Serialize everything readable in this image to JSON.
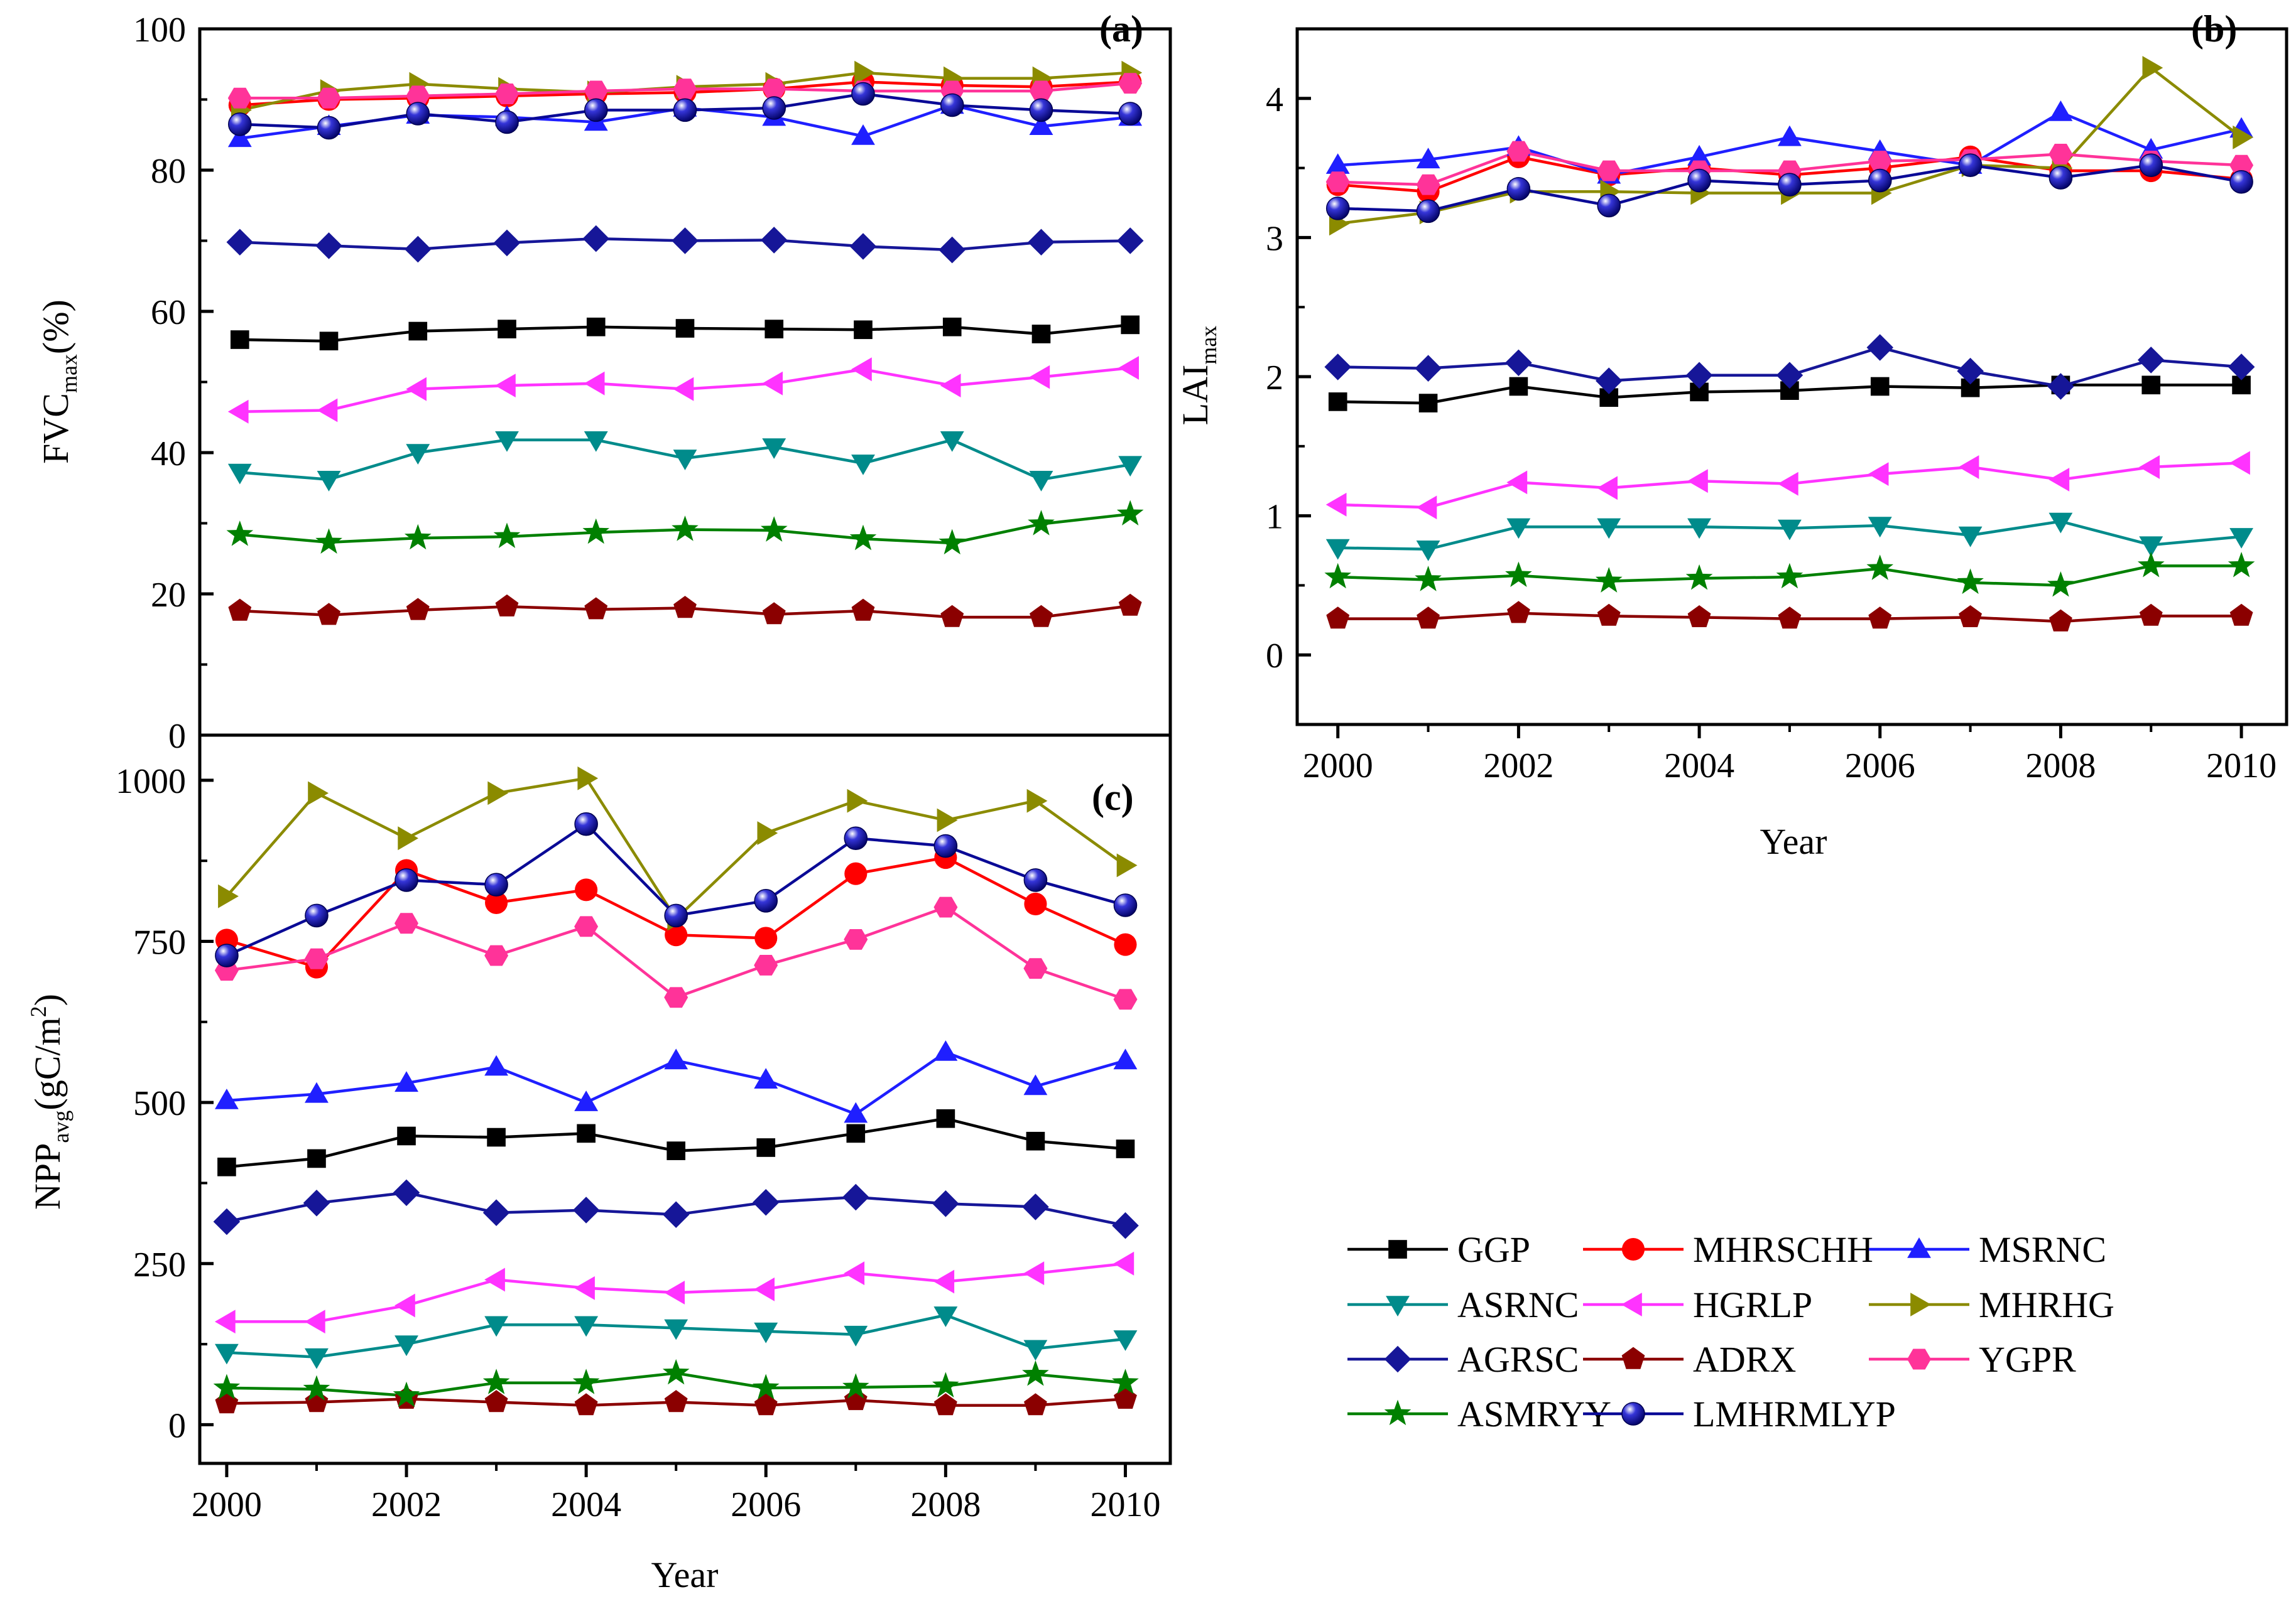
{
  "chart_data": [
    {
      "panel": "(a)",
      "type": "line",
      "title": "",
      "xlabel": "",
      "ylabel": {
        "main": "FVC",
        "sub": "max",
        "suffix": "(%)"
      },
      "xlim": [
        1999.55,
        2010.45
      ],
      "ylim": [
        0,
        100
      ],
      "yticks": [
        0,
        20,
        40,
        60,
        80,
        100
      ],
      "xticks": [],
      "x": [
        2000,
        2001,
        2002,
        2003,
        2004,
        2005,
        2006,
        2007,
        2008,
        2009,
        2010
      ],
      "series": [
        {
          "name": "GGP",
          "values": [
            56,
            55.8,
            57.2,
            57.5,
            57.8,
            57.6,
            57.5,
            57.4,
            57.8,
            56.8,
            58.1
          ]
        },
        {
          "name": "MHRSCHH",
          "values": [
            89.2,
            90,
            90.2,
            90.5,
            90.8,
            91,
            91.5,
            92.5,
            92,
            91.8,
            92.5
          ]
        },
        {
          "name": "MSRNC",
          "values": [
            84.5,
            86.2,
            87.8,
            87.5,
            86.8,
            88.8,
            87.5,
            84.8,
            89.2,
            86.2,
            87.5
          ]
        },
        {
          "name": "ASRNC",
          "values": [
            37.2,
            36.2,
            40,
            41.8,
            41.8,
            39.2,
            40.8,
            38.5,
            41.8,
            36.2,
            38.3
          ]
        },
        {
          "name": "HGRLP",
          "values": [
            45.8,
            46,
            49,
            49.5,
            49.8,
            49,
            49.8,
            51.8,
            49.5,
            50.7,
            52
          ]
        },
        {
          "name": "MHRHG",
          "values": [
            88.5,
            91.2,
            92.2,
            91.5,
            91,
            91.8,
            92.2,
            93.8,
            93,
            93,
            93.8
          ]
        },
        {
          "name": "AGRSC",
          "values": [
            69.8,
            69.3,
            68.8,
            69.7,
            70.3,
            70,
            70.1,
            69.2,
            68.7,
            69.8,
            70
          ]
        },
        {
          "name": "ADRX",
          "values": [
            17.6,
            17,
            17.7,
            18.2,
            17.8,
            18,
            17.1,
            17.6,
            16.7,
            16.7,
            18.3
          ]
        },
        {
          "name": "YGPR",
          "values": [
            90.2,
            90.2,
            90.5,
            90.8,
            91.2,
            91.5,
            91.5,
            91.2,
            91.2,
            91.2,
            92.3
          ]
        },
        {
          "name": "ASMRYY",
          "values": [
            28.4,
            27.3,
            27.9,
            28.1,
            28.7,
            29.1,
            29,
            27.8,
            27.2,
            29.9,
            31.3
          ]
        },
        {
          "name": "LMHRMLYP",
          "values": [
            86.5,
            86,
            88,
            86.8,
            88.5,
            88.5,
            88.8,
            90.8,
            89.2,
            88.5,
            88
          ]
        }
      ]
    },
    {
      "panel": "(b)",
      "type": "line",
      "title": "",
      "xlabel": "Year",
      "ylabel": {
        "main": "LAI",
        "sub": "max",
        "suffix": ""
      },
      "xlim": [
        1999.55,
        2010.5
      ],
      "ylim": [
        -0.5,
        4.5
      ],
      "yticks": [
        0,
        1,
        2,
        3,
        4
      ],
      "xticks": [
        2000,
        2002,
        2004,
        2006,
        2008,
        2010
      ],
      "x": [
        2000,
        2001,
        2002,
        2003,
        2004,
        2005,
        2006,
        2007,
        2008,
        2009,
        2010
      ],
      "series": [
        {
          "name": "GGP",
          "values": [
            1.82,
            1.81,
            1.93,
            1.85,
            1.89,
            1.9,
            1.93,
            1.92,
            1.94,
            1.94,
            1.94
          ]
        },
        {
          "name": "MHRSCHH",
          "values": [
            3.38,
            3.33,
            3.58,
            3.45,
            3.5,
            3.45,
            3.5,
            3.58,
            3.48,
            3.48,
            3.42
          ]
        },
        {
          "name": "MSRNC",
          "values": [
            3.52,
            3.56,
            3.65,
            3.45,
            3.58,
            3.72,
            3.62,
            3.52,
            3.9,
            3.63,
            3.78
          ]
        },
        {
          "name": "ASRNC",
          "values": [
            0.77,
            0.76,
            0.92,
            0.92,
            0.92,
            0.91,
            0.93,
            0.86,
            0.96,
            0.79,
            0.85
          ]
        },
        {
          "name": "HGRLP",
          "values": [
            1.08,
            1.06,
            1.24,
            1.2,
            1.25,
            1.23,
            1.3,
            1.35,
            1.26,
            1.35,
            1.38
          ]
        },
        {
          "name": "MHRHG",
          "values": [
            3.1,
            3.18,
            3.33,
            3.33,
            3.32,
            3.32,
            3.32,
            3.52,
            3.5,
            4.22,
            3.72
          ]
        },
        {
          "name": "AGRSC",
          "values": [
            2.07,
            2.06,
            2.1,
            1.97,
            2.01,
            2.01,
            2.21,
            2.04,
            1.93,
            2.12,
            2.07
          ]
        },
        {
          "name": "ADRX",
          "values": [
            0.26,
            0.26,
            0.3,
            0.28,
            0.27,
            0.26,
            0.26,
            0.27,
            0.24,
            0.28,
            0.28
          ]
        },
        {
          "name": "YGPR",
          "values": [
            3.4,
            3.38,
            3.62,
            3.48,
            3.48,
            3.48,
            3.55,
            3.56,
            3.6,
            3.55,
            3.52
          ]
        },
        {
          "name": "ASMRYY",
          "values": [
            0.56,
            0.54,
            0.57,
            0.53,
            0.55,
            0.56,
            0.62,
            0.52,
            0.5,
            0.64,
            0.64
          ]
        },
        {
          "name": "LMHRMLYP",
          "values": [
            3.21,
            3.19,
            3.35,
            3.23,
            3.41,
            3.38,
            3.41,
            3.52,
            3.43,
            3.52,
            3.4
          ]
        }
      ]
    },
    {
      "panel": "(c)",
      "type": "line",
      "title": "",
      "xlabel": "Year",
      "ylabel": {
        "main": "NPP",
        "sub": "avg",
        "suffix": "(gC/m",
        "sup": "2",
        "close": ")"
      },
      "xlim": [
        1999.7,
        2010.5
      ],
      "ylim": [
        -60,
        1070
      ],
      "yticks": [
        0,
        250,
        500,
        750,
        1000
      ],
      "xticks": [
        2000,
        2002,
        2004,
        2006,
        2008,
        2010
      ],
      "x": [
        2000,
        2001,
        2002,
        2003,
        2004,
        2005,
        2006,
        2007,
        2008,
        2009,
        2010
      ],
      "series": [
        {
          "name": "GGP",
          "values": [
            400,
            413,
            448,
            446,
            452,
            425,
            430,
            452,
            475,
            440,
            428
          ]
        },
        {
          "name": "MHRSCHH",
          "values": [
            752,
            710,
            860,
            810,
            830,
            760,
            755,
            855,
            880,
            808,
            745
          ]
        },
        {
          "name": "MSRNC",
          "values": [
            503,
            513,
            530,
            555,
            500,
            565,
            535,
            482,
            578,
            525,
            565
          ]
        },
        {
          "name": "ASRNC",
          "values": [
            112,
            105,
            125,
            155,
            155,
            150,
            145,
            140,
            170,
            118,
            133
          ]
        },
        {
          "name": "HGRLP",
          "values": [
            160,
            160,
            185,
            225,
            212,
            205,
            210,
            235,
            222,
            235,
            250
          ]
        },
        {
          "name": "MHRHG",
          "values": [
            820,
            980,
            910,
            980,
            1003,
            785,
            918,
            968,
            938,
            968,
            868
          ]
        },
        {
          "name": "AGRSC",
          "values": [
            315,
            344,
            360,
            329,
            333,
            326,
            345,
            353,
            343,
            338,
            309
          ]
        },
        {
          "name": "ADRX",
          "values": [
            33,
            35,
            40,
            35,
            30,
            35,
            30,
            38,
            30,
            30,
            40
          ]
        },
        {
          "name": "YGPR",
          "values": [
            705,
            723,
            778,
            728,
            773,
            663,
            713,
            753,
            803,
            708,
            660
          ]
        },
        {
          "name": "ASMRYY",
          "values": [
            57,
            55,
            45,
            65,
            65,
            80,
            57,
            58,
            60,
            78,
            65
          ]
        },
        {
          "name": "LMHRMLYP",
          "values": [
            728,
            790,
            845,
            838,
            932,
            790,
            813,
            910,
            898,
            845,
            806
          ]
        }
      ]
    }
  ],
  "legend": {
    "placement": "bottom-right",
    "entries": [
      "GGP",
      "MHRSCHH",
      "MSRNC",
      "ASRNC",
      "HGRLP",
      "MHRHG",
      "AGRSC",
      "ADRX",
      "YGPR",
      "ASMRYY",
      "LMHRMLYP"
    ]
  },
  "series_style": {
    "GGP": {
      "color": "#000000",
      "marker": "square"
    },
    "MHRSCHH": {
      "color": "#ff0000",
      "marker": "circle"
    },
    "MSRNC": {
      "color": "#1f1fff",
      "marker": "triangle-up"
    },
    "ASRNC": {
      "color": "#008b8b",
      "marker": "triangle-down"
    },
    "HGRLP": {
      "color": "#ff33ff",
      "marker": "triangle-left"
    },
    "MHRHG": {
      "color": "#8b8b00",
      "marker": "triangle-right"
    },
    "AGRSC": {
      "color": "#161698",
      "marker": "diamond"
    },
    "ADRX": {
      "color": "#8b0000",
      "marker": "pentagon"
    },
    "YGPR": {
      "color": "#ff3399",
      "marker": "hexagon"
    },
    "ASMRYY": {
      "color": "#008000",
      "marker": "star"
    },
    "LMHRMLYP": {
      "color": "#0a0a96",
      "marker": "sphere"
    }
  }
}
